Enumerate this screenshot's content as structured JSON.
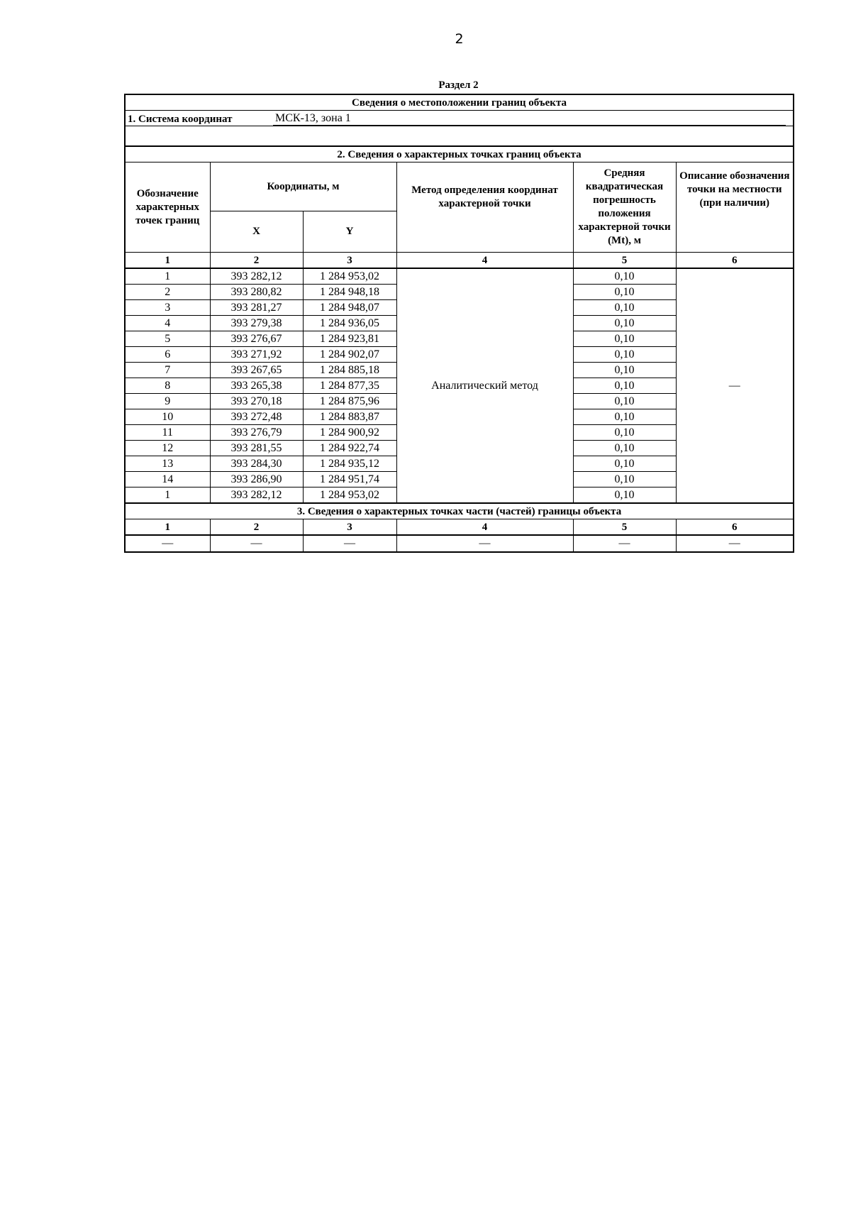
{
  "page_number": "2",
  "section_title": "Раздел 2",
  "table_title": "Сведения о местоположении границ объекта",
  "coordinate_system": {
    "label": "1. Система координат",
    "value": "МСК-13, зона 1"
  },
  "part2": {
    "title": "2. Сведения о характерных точках границ объекта",
    "headers": {
      "designation": "Обозначение характерных точек границ",
      "coords": "Координаты, м",
      "x": "X",
      "y": "Y",
      "method": "Метод определения координат характерной точки",
      "error": "Средняя квадратическая погрешность положения характерной точки (Mt), м",
      "description": "Описание обозначения точки на местности (при наличии)"
    },
    "column_numbers": [
      "1",
      "2",
      "3",
      "4",
      "5",
      "6"
    ],
    "method_value": "Аналитический метод",
    "description_value": "—",
    "rows": [
      {
        "point": "1",
        "x": "393 282,12",
        "y": "1 284 953,02",
        "mt": "0,10"
      },
      {
        "point": "2",
        "x": "393 280,82",
        "y": "1 284 948,18",
        "mt": "0,10"
      },
      {
        "point": "3",
        "x": "393 281,27",
        "y": "1 284 948,07",
        "mt": "0,10"
      },
      {
        "point": "4",
        "x": "393 279,38",
        "y": "1 284 936,05",
        "mt": "0,10"
      },
      {
        "point": "5",
        "x": "393 276,67",
        "y": "1 284 923,81",
        "mt": "0,10"
      },
      {
        "point": "6",
        "x": "393 271,92",
        "y": "1 284 902,07",
        "mt": "0,10"
      },
      {
        "point": "7",
        "x": "393 267,65",
        "y": "1 284 885,18",
        "mt": "0,10"
      },
      {
        "point": "8",
        "x": "393 265,38",
        "y": "1 284 877,35",
        "mt": "0,10"
      },
      {
        "point": "9",
        "x": "393 270,18",
        "y": "1 284 875,96",
        "mt": "0,10"
      },
      {
        "point": "10",
        "x": "393 272,48",
        "y": "1 284 883,87",
        "mt": "0,10"
      },
      {
        "point": "11",
        "x": "393 276,79",
        "y": "1 284 900,92",
        "mt": "0,10"
      },
      {
        "point": "12",
        "x": "393 281,55",
        "y": "1 284 922,74",
        "mt": "0,10"
      },
      {
        "point": "13",
        "x": "393 284,30",
        "y": "1 284 935,12",
        "mt": "0,10"
      },
      {
        "point": "14",
        "x": "393 286,90",
        "y": "1 284 951,74",
        "mt": "0,10"
      },
      {
        "point": "1",
        "x": "393 282,12",
        "y": "1 284 953,02",
        "mt": "0,10"
      }
    ]
  },
  "part3": {
    "title": "3. Сведения о характерных точках части (частей) границы объекта",
    "column_numbers": [
      "1",
      "2",
      "3",
      "4",
      "5",
      "6"
    ],
    "row": [
      "—",
      "—",
      "—",
      "—",
      "—",
      "—"
    ]
  }
}
